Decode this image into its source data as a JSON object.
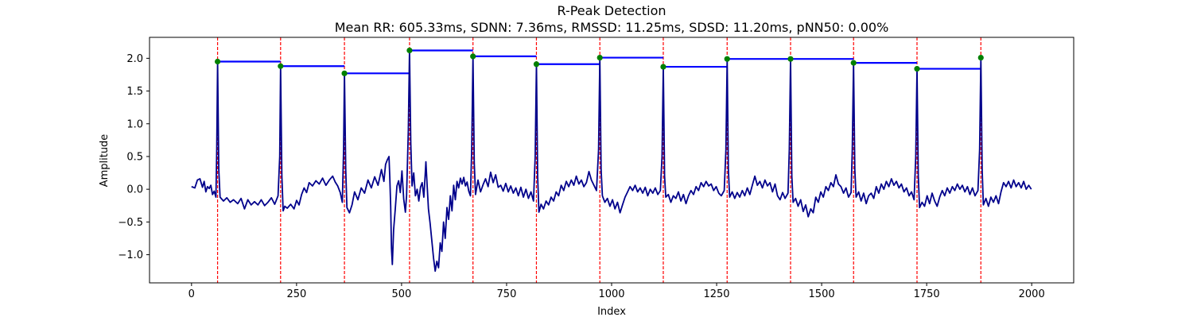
{
  "chart_data": {
    "type": "line",
    "title": "R-Peak Detection",
    "subtitle": "Mean RR: 605.33ms, SDNN: 7.36ms, RMSSD: 11.25ms, SDSD: 11.20ms, pNN50: 0.00%",
    "xlabel": "Index",
    "ylabel": "Amplitude",
    "xlim": [
      -100,
      2100
    ],
    "ylim": [
      -1.43,
      2.32
    ],
    "xticks": [
      0,
      250,
      500,
      750,
      1000,
      1250,
      1500,
      1750,
      2000
    ],
    "xtick_labels": [
      "0",
      "250",
      "500",
      "750",
      "1000",
      "1250",
      "1500",
      "1750",
      "2000"
    ],
    "yticks": [
      -1.0,
      -0.5,
      0.0,
      0.5,
      1.0,
      1.5,
      2.0
    ],
    "ytick_labels": [
      "−1.0",
      "−0.5",
      "0.0",
      "0.5",
      "1.0",
      "1.5",
      "2.0"
    ],
    "grid": false,
    "colors": {
      "signal": "#00008b",
      "peak_marker": "#008000",
      "peak_line": "#ff0000",
      "rr_segment": "#0000ff"
    },
    "peaks": {
      "x": [
        62,
        212,
        364,
        519,
        670,
        821,
        972,
        1123,
        1275,
        1426,
        1576,
        1727,
        1879
      ],
      "y": [
        1.95,
        1.88,
        1.77,
        2.12,
        2.03,
        1.91,
        2.01,
        1.87,
        1.99,
        1.99,
        1.93,
        1.84,
        2.01
      ]
    },
    "signal": [
      [
        0,
        0.04
      ],
      [
        8,
        0.02
      ],
      [
        14,
        0.14
      ],
      [
        20,
        0.16
      ],
      [
        26,
        0.03
      ],
      [
        30,
        0.12
      ],
      [
        34,
        -0.04
      ],
      [
        38,
        0.04
      ],
      [
        42,
        0.01
      ],
      [
        46,
        0.06
      ],
      [
        50,
        -0.08
      ],
      [
        54,
        -0.03
      ],
      [
        58,
        -0.12
      ],
      [
        60,
        0.6
      ],
      [
        62,
        1.95
      ],
      [
        65,
        0.3
      ],
      [
        68,
        -0.12
      ],
      [
        76,
        -0.18
      ],
      [
        84,
        -0.13
      ],
      [
        92,
        -0.2
      ],
      [
        100,
        -0.16
      ],
      [
        110,
        -0.22
      ],
      [
        118,
        -0.14
      ],
      [
        126,
        -0.3
      ],
      [
        134,
        -0.16
      ],
      [
        142,
        -0.24
      ],
      [
        150,
        -0.19
      ],
      [
        158,
        -0.24
      ],
      [
        166,
        -0.16
      ],
      [
        174,
        -0.25
      ],
      [
        182,
        -0.2
      ],
      [
        190,
        -0.13
      ],
      [
        198,
        -0.23
      ],
      [
        206,
        -0.1
      ],
      [
        210,
        0.5
      ],
      [
        212,
        1.88
      ],
      [
        215,
        0.2
      ],
      [
        218,
        -0.33
      ],
      [
        222,
        -0.26
      ],
      [
        228,
        -0.29
      ],
      [
        236,
        -0.23
      ],
      [
        244,
        -0.3
      ],
      [
        250,
        -0.17
      ],
      [
        256,
        -0.24
      ],
      [
        262,
        -0.08
      ],
      [
        268,
        0.02
      ],
      [
        274,
        -0.05
      ],
      [
        280,
        0.1
      ],
      [
        288,
        0.05
      ],
      [
        296,
        0.13
      ],
      [
        304,
        0.08
      ],
      [
        312,
        0.17
      ],
      [
        320,
        0.06
      ],
      [
        328,
        0.14
      ],
      [
        336,
        0.2
      ],
      [
        342,
        0.11
      ],
      [
        348,
        0.05
      ],
      [
        354,
        -0.05
      ],
      [
        359,
        -0.2
      ],
      [
        362,
        0.6
      ],
      [
        364,
        1.77
      ],
      [
        367,
        0.3
      ],
      [
        370,
        -0.28
      ],
      [
        376,
        -0.36
      ],
      [
        382,
        -0.24
      ],
      [
        388,
        -0.04
      ],
      [
        396,
        -0.16
      ],
      [
        404,
        0.02
      ],
      [
        412,
        -0.06
      ],
      [
        420,
        0.14
      ],
      [
        428,
        0.02
      ],
      [
        436,
        0.19
      ],
      [
        444,
        0.06
      ],
      [
        452,
        0.3
      ],
      [
        458,
        0.12
      ],
      [
        462,
        0.38
      ],
      [
        466,
        0.45
      ],
      [
        470,
        0.5
      ],
      [
        472,
        0.18
      ],
      [
        474,
        -0.25
      ],
      [
        476,
        -0.9
      ],
      [
        478,
        -1.15
      ],
      [
        481,
        -0.62
      ],
      [
        485,
        -0.3
      ],
      [
        489,
        0.05
      ],
      [
        493,
        0.13
      ],
      [
        497,
        -0.05
      ],
      [
        501,
        0.28
      ],
      [
        505,
        -0.15
      ],
      [
        509,
        -0.35
      ],
      [
        512,
        -0.1
      ],
      [
        516,
        0.9
      ],
      [
        519,
        2.12
      ],
      [
        522,
        0.7
      ],
      [
        525,
        0.05
      ],
      [
        529,
        0.25
      ],
      [
        533,
        -0.1
      ],
      [
        537,
        0.0
      ],
      [
        541,
        -0.18
      ],
      [
        545,
        0.03
      ],
      [
        549,
        0.1
      ],
      [
        553,
        -0.12
      ],
      [
        556,
        0.2
      ],
      [
        558,
        0.42
      ],
      [
        561,
        0.05
      ],
      [
        564,
        -0.3
      ],
      [
        568,
        -0.52
      ],
      [
        572,
        -0.78
      ],
      [
        576,
        -1.05
      ],
      [
        580,
        -1.25
      ],
      [
        584,
        -1.1
      ],
      [
        588,
        -1.2
      ],
      [
        592,
        -0.82
      ],
      [
        596,
        -0.95
      ],
      [
        600,
        -0.5
      ],
      [
        604,
        -0.75
      ],
      [
        608,
        -0.28
      ],
      [
        612,
        -0.46
      ],
      [
        616,
        -0.1
      ],
      [
        620,
        -0.33
      ],
      [
        624,
        0.06
      ],
      [
        628,
        -0.16
      ],
      [
        632,
        0.12
      ],
      [
        636,
        0.02
      ],
      [
        640,
        0.17
      ],
      [
        644,
        0.08
      ],
      [
        648,
        0.18
      ],
      [
        652,
        0.05
      ],
      [
        656,
        0.11
      ],
      [
        660,
        -0.03
      ],
      [
        664,
        -0.1
      ],
      [
        667,
        0.6
      ],
      [
        670,
        2.03
      ],
      [
        673,
        0.4
      ],
      [
        676,
        -0.08
      ],
      [
        682,
        0.14
      ],
      [
        688,
        -0.04
      ],
      [
        694,
        0.07
      ],
      [
        700,
        0.16
      ],
      [
        706,
        0.04
      ],
      [
        712,
        0.26
      ],
      [
        718,
        0.1
      ],
      [
        724,
        0.22
      ],
      [
        730,
        0.03
      ],
      [
        736,
        0.06
      ],
      [
        742,
        -0.03
      ],
      [
        748,
        0.09
      ],
      [
        754,
        -0.04
      ],
      [
        760,
        0.05
      ],
      [
        766,
        -0.06
      ],
      [
        772,
        0.02
      ],
      [
        778,
        -0.1
      ],
      [
        784,
        0.03
      ],
      [
        790,
        -0.12
      ],
      [
        796,
        0.0
      ],
      [
        802,
        -0.14
      ],
      [
        808,
        -0.04
      ],
      [
        814,
        -0.18
      ],
      [
        818,
        0.5
      ],
      [
        821,
        1.91
      ],
      [
        824,
        0.2
      ],
      [
        827,
        -0.35
      ],
      [
        832,
        -0.23
      ],
      [
        838,
        -0.3
      ],
      [
        844,
        -0.18
      ],
      [
        850,
        -0.24
      ],
      [
        856,
        -0.12
      ],
      [
        862,
        -0.18
      ],
      [
        868,
        -0.04
      ],
      [
        874,
        -0.1
      ],
      [
        880,
        0.06
      ],
      [
        886,
        -0.02
      ],
      [
        892,
        0.12
      ],
      [
        898,
        0.04
      ],
      [
        904,
        0.14
      ],
      [
        910,
        0.06
      ],
      [
        916,
        0.2
      ],
      [
        922,
        0.08
      ],
      [
        928,
        0.14
      ],
      [
        934,
        0.04
      ],
      [
        940,
        0.1
      ],
      [
        946,
        0.27
      ],
      [
        952,
        0.14
      ],
      [
        958,
        0.06
      ],
      [
        964,
        -0.02
      ],
      [
        969,
        0.6
      ],
      [
        972,
        2.01
      ],
      [
        975,
        0.3
      ],
      [
        978,
        -0.1
      ],
      [
        984,
        -0.2
      ],
      [
        990,
        -0.14
      ],
      [
        996,
        -0.26
      ],
      [
        1002,
        -0.16
      ],
      [
        1008,
        -0.3
      ],
      [
        1014,
        -0.2
      ],
      [
        1020,
        -0.36
      ],
      [
        1026,
        -0.24
      ],
      [
        1032,
        -0.12
      ],
      [
        1038,
        -0.04
      ],
      [
        1044,
        0.04
      ],
      [
        1050,
        -0.02
      ],
      [
        1056,
        0.06
      ],
      [
        1062,
        -0.04
      ],
      [
        1068,
        0.02
      ],
      [
        1074,
        -0.06
      ],
      [
        1080,
        0.03
      ],
      [
        1086,
        -0.1
      ],
      [
        1092,
        0.0
      ],
      [
        1098,
        -0.06
      ],
      [
        1104,
        0.02
      ],
      [
        1110,
        -0.08
      ],
      [
        1116,
        -0.02
      ],
      [
        1120,
        0.5
      ],
      [
        1123,
        1.87
      ],
      [
        1126,
        0.2
      ],
      [
        1129,
        -0.12
      ],
      [
        1135,
        -0.08
      ],
      [
        1141,
        -0.2
      ],
      [
        1147,
        -0.1
      ],
      [
        1153,
        -0.14
      ],
      [
        1159,
        -0.04
      ],
      [
        1165,
        -0.18
      ],
      [
        1171,
        -0.08
      ],
      [
        1177,
        -0.22
      ],
      [
        1183,
        -0.1
      ],
      [
        1189,
        -0.02
      ],
      [
        1195,
        -0.08
      ],
      [
        1201,
        0.04
      ],
      [
        1207,
        -0.02
      ],
      [
        1213,
        0.1
      ],
      [
        1219,
        0.04
      ],
      [
        1225,
        0.12
      ],
      [
        1231,
        0.05
      ],
      [
        1237,
        0.08
      ],
      [
        1243,
        -0.02
      ],
      [
        1249,
        0.04
      ],
      [
        1255,
        -0.06
      ],
      [
        1261,
        -0.1
      ],
      [
        1268,
        -0.02
      ],
      [
        1272,
        0.6
      ],
      [
        1275,
        1.99
      ],
      [
        1278,
        0.3
      ],
      [
        1281,
        -0.12
      ],
      [
        1287,
        -0.04
      ],
      [
        1293,
        -0.14
      ],
      [
        1299,
        -0.05
      ],
      [
        1305,
        -0.12
      ],
      [
        1311,
        -0.02
      ],
      [
        1317,
        -0.1
      ],
      [
        1323,
        0.02
      ],
      [
        1329,
        -0.08
      ],
      [
        1335,
        0.06
      ],
      [
        1341,
        0.2
      ],
      [
        1347,
        0.06
      ],
      [
        1353,
        0.12
      ],
      [
        1359,
        0.02
      ],
      [
        1365,
        0.14
      ],
      [
        1371,
        0.05
      ],
      [
        1377,
        0.1
      ],
      [
        1383,
        -0.04
      ],
      [
        1389,
        0.08
      ],
      [
        1395,
        -0.1
      ],
      [
        1401,
        -0.16
      ],
      [
        1407,
        -0.05
      ],
      [
        1413,
        -0.14
      ],
      [
        1420,
        -0.06
      ],
      [
        1423,
        0.6
      ],
      [
        1426,
        1.99
      ],
      [
        1429,
        0.2
      ],
      [
        1432,
        -0.2
      ],
      [
        1438,
        -0.14
      ],
      [
        1444,
        -0.26
      ],
      [
        1450,
        -0.16
      ],
      [
        1456,
        -0.34
      ],
      [
        1462,
        -0.24
      ],
      [
        1468,
        -0.42
      ],
      [
        1474,
        -0.3
      ],
      [
        1480,
        -0.36
      ],
      [
        1486,
        -0.12
      ],
      [
        1492,
        -0.2
      ],
      [
        1498,
        -0.04
      ],
      [
        1504,
        -0.12
      ],
      [
        1510,
        0.04
      ],
      [
        1516,
        -0.02
      ],
      [
        1522,
        0.1
      ],
      [
        1528,
        0.04
      ],
      [
        1534,
        0.22
      ],
      [
        1540,
        0.08
      ],
      [
        1546,
        0.04
      ],
      [
        1552,
        -0.06
      ],
      [
        1558,
        0.02
      ],
      [
        1564,
        -0.12
      ],
      [
        1570,
        -0.05
      ],
      [
        1573,
        0.6
      ],
      [
        1576,
        1.93
      ],
      [
        1579,
        0.3
      ],
      [
        1582,
        -0.12
      ],
      [
        1588,
        -0.04
      ],
      [
        1594,
        -0.18
      ],
      [
        1600,
        -0.06
      ],
      [
        1606,
        -0.22
      ],
      [
        1612,
        -0.1
      ],
      [
        1618,
        -0.06
      ],
      [
        1624,
        -0.14
      ],
      [
        1630,
        0.04
      ],
      [
        1636,
        -0.06
      ],
      [
        1642,
        0.08
      ],
      [
        1648,
        0.0
      ],
      [
        1654,
        0.12
      ],
      [
        1660,
        0.04
      ],
      [
        1666,
        0.16
      ],
      [
        1672,
        0.06
      ],
      [
        1678,
        0.12
      ],
      [
        1684,
        0.02
      ],
      [
        1690,
        0.08
      ],
      [
        1696,
        -0.04
      ],
      [
        1702,
        0.02
      ],
      [
        1708,
        -0.1
      ],
      [
        1714,
        -0.04
      ],
      [
        1720,
        -0.16
      ],
      [
        1724,
        0.5
      ],
      [
        1727,
        1.84
      ],
      [
        1730,
        0.2
      ],
      [
        1733,
        -0.28
      ],
      [
        1739,
        -0.2
      ],
      [
        1745,
        -0.26
      ],
      [
        1751,
        -0.1
      ],
      [
        1757,
        -0.22
      ],
      [
        1763,
        -0.06
      ],
      [
        1769,
        -0.18
      ],
      [
        1775,
        -0.26
      ],
      [
        1781,
        -0.12
      ],
      [
        1787,
        -0.02
      ],
      [
        1793,
        -0.1
      ],
      [
        1799,
        0.02
      ],
      [
        1805,
        -0.06
      ],
      [
        1811,
        0.04
      ],
      [
        1817,
        -0.02
      ],
      [
        1823,
        0.08
      ],
      [
        1829,
        0.0
      ],
      [
        1835,
        0.06
      ],
      [
        1841,
        -0.04
      ],
      [
        1847,
        0.04
      ],
      [
        1853,
        -0.08
      ],
      [
        1859,
        0.02
      ],
      [
        1865,
        -0.1
      ],
      [
        1872,
        -0.02
      ],
      [
        1876,
        0.6
      ],
      [
        1879,
        2.01
      ],
      [
        1882,
        0.3
      ],
      [
        1885,
        -0.24
      ],
      [
        1891,
        -0.14
      ],
      [
        1897,
        -0.26
      ],
      [
        1903,
        -0.12
      ],
      [
        1909,
        -0.2
      ],
      [
        1915,
        -0.1
      ],
      [
        1921,
        -0.22
      ],
      [
        1927,
        -0.04
      ],
      [
        1933,
        0.1
      ],
      [
        1939,
        0.04
      ],
      [
        1945,
        0.12
      ],
      [
        1951,
        0.02
      ],
      [
        1957,
        0.14
      ],
      [
        1963,
        0.04
      ],
      [
        1969,
        0.1
      ],
      [
        1975,
        0.02
      ],
      [
        1981,
        0.12
      ],
      [
        1987,
        0.0
      ],
      [
        1993,
        0.06
      ],
      [
        1999,
        0.0
      ]
    ]
  }
}
